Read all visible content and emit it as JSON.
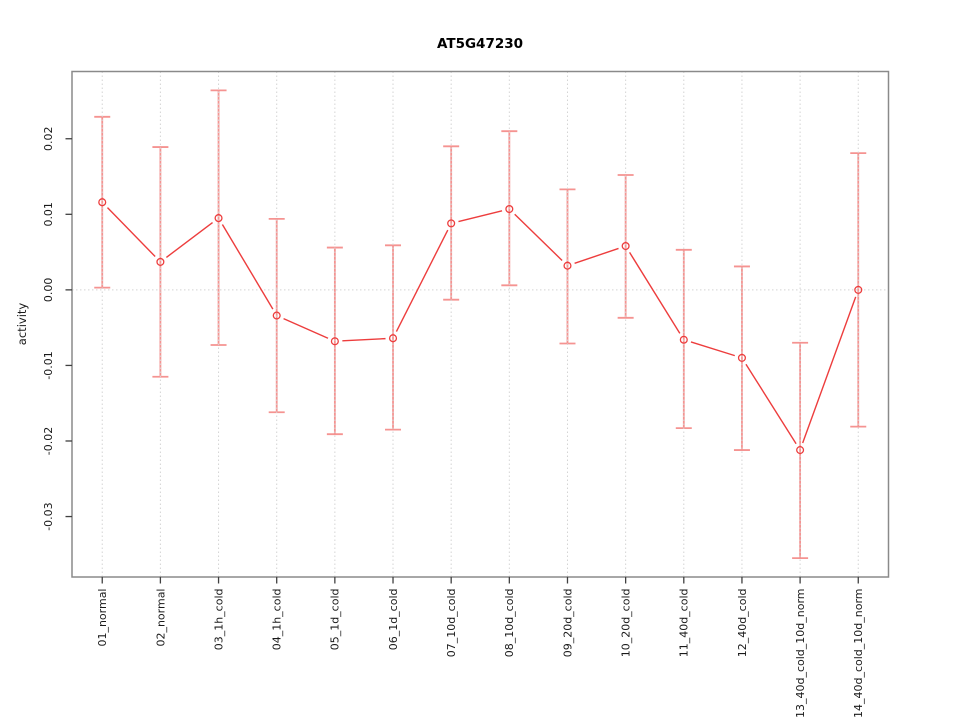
{
  "chart_data": {
    "type": "line",
    "subtype": "means-with-error-bars",
    "title": "AT5G47230",
    "xlabel": "",
    "ylabel": "activity",
    "categories": [
      "01_normal",
      "02_normal",
      "03_1h_cold",
      "04_1h_cold",
      "05_1d_cold",
      "06_1d_cold",
      "07_10d_cold",
      "08_10d_cold",
      "09_20d_cold",
      "10_20d_cold",
      "11_40d_cold",
      "12_40d_cold",
      "13_40d_cold_10d_norm",
      "14_40d_cold_10d_norm"
    ],
    "series": [
      {
        "name": "activity",
        "means": [
          0.0116,
          0.0037,
          0.0095,
          -0.0034,
          -0.0068,
          -0.0064,
          0.0088,
          0.0107,
          0.0032,
          0.0058,
          -0.0066,
          -0.009,
          -0.0212,
          0.0
        ],
        "upper": [
          0.0229,
          0.0189,
          0.0264,
          0.0094,
          0.0056,
          0.0059,
          0.019,
          0.021,
          0.0133,
          0.0152,
          0.0053,
          0.0031,
          -0.007,
          0.0181
        ],
        "lower": [
          0.0003,
          -0.0115,
          -0.0073,
          -0.0162,
          -0.0191,
          -0.0185,
          -0.0013,
          0.0006,
          -0.0071,
          -0.0037,
          -0.0183,
          -0.0212,
          -0.0355,
          -0.0181
        ]
      }
    ],
    "yticks": [
      -0.03,
      -0.02,
      -0.01,
      0.0,
      0.01,
      0.02
    ],
    "ytick_labels": [
      "-0.03",
      "-0.02",
      "-0.01",
      "0.00",
      "0.01",
      "0.02"
    ],
    "ylim": [
      -0.038,
      0.0289
    ],
    "grid": {
      "vertical_category_lines": true,
      "horizontal_zero_line": true,
      "style": "dotted"
    },
    "legend": "none",
    "colors": {
      "series": "#ed3d3d",
      "error_bar": "#f59391",
      "grid": "#d4d4d4",
      "box": "#8a8a8a",
      "tick": "#404040",
      "text": "#1a1a1a",
      "background": "#ffffff"
    }
  }
}
